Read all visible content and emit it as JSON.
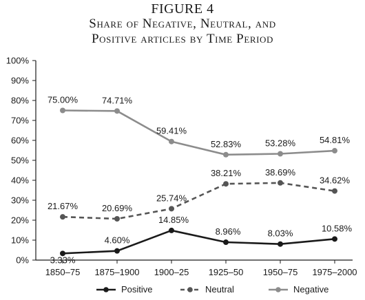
{
  "figure_label": "FIGURE 4",
  "title_line1": "Share of Negative, Neutral, and",
  "title_line2": "Positive articles by Time Period",
  "chart_data": {
    "type": "line",
    "categories": [
      "1850–75",
      "1875–1900",
      "1900–25",
      "1925–50",
      "1950–75",
      "1975–2000"
    ],
    "yticks": [
      "0%",
      "10%",
      "20%",
      "30%",
      "40%",
      "50%",
      "60%",
      "70%",
      "80%",
      "90%",
      "100%"
    ],
    "ylim": [
      0,
      100
    ],
    "grid": false,
    "legend_position": "bottom",
    "series": [
      {
        "name": "Positive",
        "style": "solid-black",
        "color": "#1a1a1a",
        "values": [
          3.33,
          4.6,
          14.85,
          8.96,
          8.03,
          10.58
        ],
        "labels": [
          "3.33%",
          "4.60%",
          "14.85%",
          "8.96%",
          "8.03%",
          "10.58%"
        ]
      },
      {
        "name": "Neutral",
        "style": "dashed-dark-gray",
        "color": "#555555",
        "values": [
          21.67,
          20.69,
          25.74,
          38.21,
          38.69,
          34.62
        ],
        "labels": [
          "21.67%",
          "20.69%",
          "25.74%",
          "38.21%",
          "38.69%",
          "34.62%"
        ]
      },
      {
        "name": "Negative",
        "style": "solid-light-gray",
        "color": "#8c8c8c",
        "values": [
          75.0,
          74.71,
          59.41,
          52.83,
          53.28,
          54.81
        ],
        "labels": [
          "75.00%",
          "74.71%",
          "59.41%",
          "52.83%",
          "53.28%",
          "54.81%"
        ]
      }
    ]
  }
}
